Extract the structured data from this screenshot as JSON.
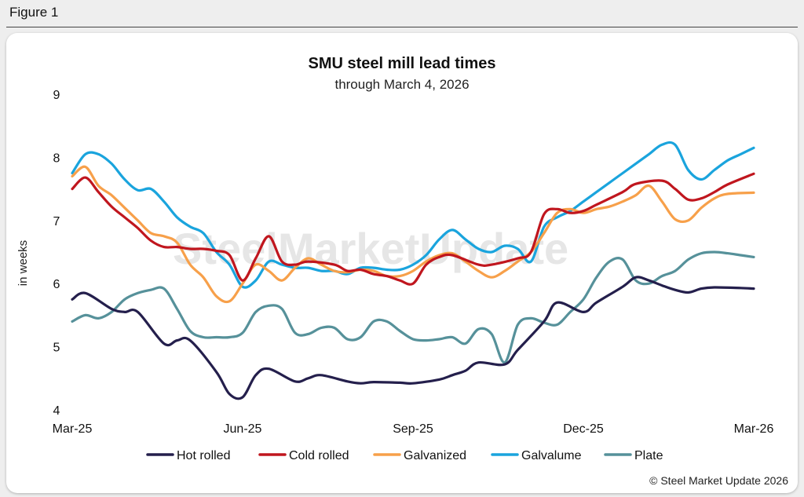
{
  "figure_label": "Figure 1",
  "copyright": "© Steel Market Update 2026",
  "watermark": "SteelMarketUpdate",
  "chart_data": {
    "type": "line",
    "title": "SMU steel mill lead times",
    "subtitle": "through March 4, 2026",
    "ylabel": "in weeks",
    "xlabel": "",
    "ylim": [
      4,
      9
    ],
    "yticks": [
      4,
      5,
      6,
      7,
      8,
      9
    ],
    "xticks": [
      "Mar-25",
      "Jun-25",
      "Sep-25",
      "Dec-25",
      "Mar-26"
    ],
    "xrange": [
      0,
      52
    ],
    "tick_positions": [
      0,
      13,
      26,
      39,
      52
    ],
    "legend_position": "bottom",
    "series": [
      {
        "name": "Hot rolled",
        "color": "#241f4c",
        "x": [
          0,
          1,
          3,
          4,
          5,
          7,
          8,
          9,
          11,
          12,
          13,
          14,
          15,
          17,
          18,
          19,
          21,
          22,
          23,
          25,
          26,
          28,
          29,
          30,
          31,
          33,
          34,
          36,
          37,
          39,
          40,
          42,
          43,
          44,
          45,
          46,
          47,
          48,
          49,
          51,
          52
        ],
        "y": [
          5.75,
          5.85,
          5.6,
          5.55,
          5.55,
          5.05,
          5.1,
          5.1,
          4.6,
          4.25,
          4.2,
          4.55,
          4.65,
          4.45,
          4.5,
          4.55,
          4.45,
          4.42,
          4.44,
          4.43,
          4.42,
          4.48,
          4.55,
          4.62,
          4.75,
          4.72,
          4.95,
          5.4,
          5.7,
          5.55,
          5.7,
          5.95,
          6.1,
          6.05,
          5.97,
          5.9,
          5.86,
          5.92,
          5.94,
          5.93,
          5.92
        ]
      },
      {
        "name": "Cold rolled",
        "color": "#c0161e",
        "x": [
          0,
          1,
          2,
          3,
          4,
          5,
          6,
          7,
          8,
          9,
          10,
          11,
          12,
          13,
          14,
          15,
          16,
          17,
          18,
          20,
          21,
          22,
          23,
          24,
          25,
          26,
          27,
          28,
          29,
          31,
          32,
          34,
          35,
          36,
          37,
          38,
          39,
          40,
          42,
          43,
          45,
          46,
          47,
          48,
          49,
          50,
          52
        ],
        "y": [
          7.5,
          7.68,
          7.45,
          7.22,
          7.05,
          6.88,
          6.68,
          6.58,
          6.58,
          6.55,
          6.55,
          6.52,
          6.45,
          6.05,
          6.4,
          6.75,
          6.35,
          6.3,
          6.35,
          6.3,
          6.2,
          6.22,
          6.15,
          6.12,
          6.05,
          6.0,
          6.3,
          6.42,
          6.45,
          6.3,
          6.3,
          6.4,
          6.5,
          7.1,
          7.18,
          7.12,
          7.15,
          7.25,
          7.45,
          7.58,
          7.63,
          7.5,
          7.33,
          7.35,
          7.45,
          7.57,
          7.74
        ]
      },
      {
        "name": "Galvanized",
        "color": "#f7a04a",
        "x": [
          0,
          1,
          2,
          3,
          4,
          5,
          6,
          7,
          8,
          9,
          10,
          11,
          12,
          13,
          14,
          15,
          16,
          17,
          18,
          19,
          20,
          21,
          22,
          23,
          24,
          25,
          26,
          27,
          28,
          29,
          30,
          31,
          32,
          33,
          34,
          35,
          36,
          37,
          38,
          39,
          40,
          41,
          42,
          43,
          44,
          45,
          46,
          47,
          48,
          49,
          50,
          52
        ],
        "y": [
          7.7,
          7.85,
          7.55,
          7.4,
          7.2,
          7.0,
          6.8,
          6.75,
          6.65,
          6.3,
          6.1,
          5.8,
          5.72,
          6.0,
          6.3,
          6.2,
          6.05,
          6.25,
          6.4,
          6.3,
          6.2,
          6.18,
          6.22,
          6.2,
          6.12,
          6.12,
          6.2,
          6.35,
          6.45,
          6.48,
          6.35,
          6.2,
          6.1,
          6.2,
          6.35,
          6.5,
          6.8,
          7.12,
          7.18,
          7.12,
          7.18,
          7.22,
          7.3,
          7.4,
          7.55,
          7.3,
          7.02,
          7.0,
          7.2,
          7.35,
          7.42,
          7.44
        ]
      },
      {
        "name": "Galvalume",
        "color": "#1aa4dd",
        "x": [
          0,
          1,
          2,
          3,
          4,
          5,
          6,
          7,
          8,
          9,
          10,
          11,
          12,
          13,
          14,
          15,
          16,
          17,
          18,
          19,
          20,
          21,
          22,
          23,
          24,
          25,
          26,
          27,
          28,
          29,
          30,
          31,
          32,
          33,
          34,
          35,
          36,
          37,
          38,
          39,
          40,
          41,
          42,
          43,
          44,
          45,
          46,
          47,
          48,
          49,
          50,
          51,
          52
        ],
        "y": [
          7.75,
          8.05,
          8.05,
          7.9,
          7.65,
          7.48,
          7.5,
          7.3,
          7.05,
          6.9,
          6.8,
          6.5,
          6.3,
          5.95,
          6.05,
          6.35,
          6.3,
          6.25,
          6.25,
          6.2,
          6.2,
          6.15,
          6.25,
          6.25,
          6.22,
          6.22,
          6.3,
          6.45,
          6.7,
          6.85,
          6.7,
          6.55,
          6.5,
          6.6,
          6.55,
          6.35,
          6.9,
          7.05,
          7.15,
          7.3,
          7.45,
          7.6,
          7.75,
          7.9,
          8.05,
          8.2,
          8.2,
          7.8,
          7.65,
          7.8,
          7.95,
          8.05,
          8.15
        ]
      },
      {
        "name": "Plate",
        "color": "#56919a",
        "x": [
          0,
          1,
          2,
          3,
          4,
          5,
          6,
          7,
          8,
          9,
          10,
          11,
          12,
          13,
          14,
          15,
          16,
          17,
          18,
          19,
          20,
          21,
          22,
          23,
          24,
          25,
          26,
          27,
          28,
          29,
          30,
          31,
          32,
          33,
          34,
          35,
          36,
          37,
          38,
          39,
          40,
          41,
          42,
          43,
          44,
          45,
          46,
          47,
          48,
          49,
          50,
          51,
          52
        ],
        "y": [
          5.4,
          5.5,
          5.45,
          5.55,
          5.75,
          5.85,
          5.9,
          5.92,
          5.6,
          5.25,
          5.15,
          5.15,
          5.15,
          5.22,
          5.55,
          5.65,
          5.6,
          5.22,
          5.2,
          5.3,
          5.3,
          5.12,
          5.15,
          5.4,
          5.4,
          5.25,
          5.12,
          5.1,
          5.12,
          5.15,
          5.05,
          5.28,
          5.2,
          4.75,
          5.35,
          5.45,
          5.38,
          5.35,
          5.55,
          5.75,
          6.1,
          6.35,
          6.38,
          6.05,
          6.0,
          6.12,
          6.2,
          6.38,
          6.48,
          6.5,
          6.48,
          6.45,
          6.42
        ]
      }
    ]
  }
}
